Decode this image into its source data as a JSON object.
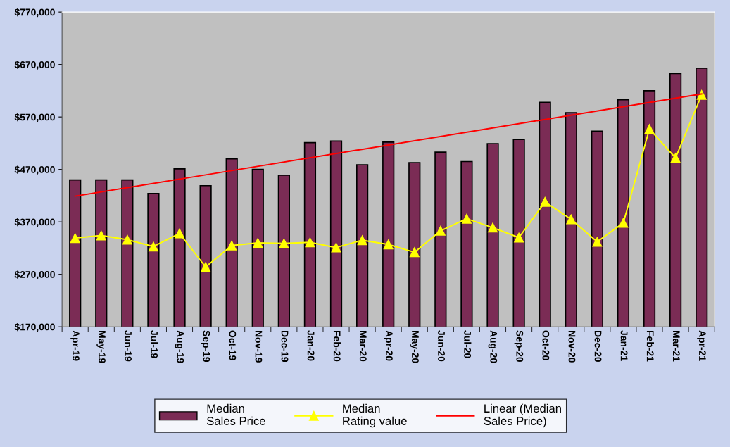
{
  "chart_data": {
    "type": "bar",
    "categories": [
      "Apr-19",
      "May-19",
      "Jun-19",
      "Jul-19",
      "Aug-19",
      "Sep-19",
      "Oct-19",
      "Nov-19",
      "Dec-19",
      "Jan-20",
      "Feb-20",
      "Mar-20",
      "Apr-20",
      "May-20",
      "Jun-20",
      "Jul-20",
      "Aug-20",
      "Sep-20",
      "Oct-20",
      "Nov-20",
      "Dec-20",
      "Jan-21",
      "Feb-21",
      "Mar-21",
      "Apr-21"
    ],
    "series": [
      {
        "name": "Median\nSales Price",
        "color": "#7b2c55",
        "values": [
          450000,
          450000,
          450000,
          424000,
          471000,
          439000,
          490000,
          470000,
          459000,
          521000,
          524000,
          479000,
          522000,
          483000,
          503000,
          485000,
          519000,
          527000,
          598000,
          578000,
          543000,
          603000,
          620000,
          653000,
          663000
        ]
      },
      {
        "name": "Median\nRating value",
        "type": "line",
        "color": "#ffff00",
        "marker": "triangle",
        "values": [
          339000,
          344000,
          336000,
          323000,
          348000,
          284000,
          325000,
          330000,
          329000,
          331000,
          321000,
          335000,
          327000,
          312000,
          353000,
          376000,
          359000,
          340000,
          408000,
          375000,
          332000,
          368000,
          547000,
          492000,
          612000
        ]
      },
      {
        "name": "Linear (Median\nSales Price)",
        "type": "line",
        "color": "#ff0000",
        "marker": "none",
        "values": [
          419000,
          null,
          null,
          null,
          null,
          null,
          null,
          null,
          null,
          null,
          null,
          null,
          null,
          null,
          null,
          null,
          null,
          null,
          null,
          null,
          null,
          null,
          null,
          null,
          614000
        ]
      }
    ],
    "ylim": [
      170000,
      770000
    ],
    "yticks": [
      {
        "value": 170000,
        "label": "$170,000"
      },
      {
        "value": 270000,
        "label": "$270,000"
      },
      {
        "value": 370000,
        "label": "$370,000"
      },
      {
        "value": 470000,
        "label": "$470,000"
      },
      {
        "value": 570000,
        "label": "$570,000"
      },
      {
        "value": 670000,
        "label": "$670,000"
      },
      {
        "value": 770000,
        "label": "$770,000"
      }
    ],
    "legend": "bottom",
    "grid": false
  }
}
